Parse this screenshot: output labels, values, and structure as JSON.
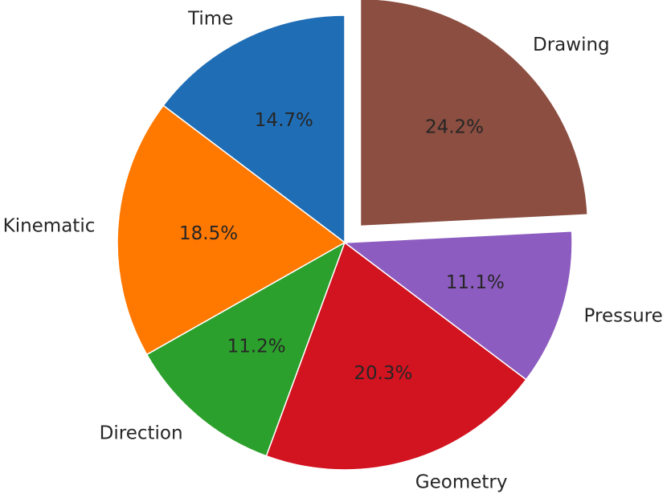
{
  "chart_data": {
    "type": "pie",
    "categories": [
      "Time",
      "Kinematic",
      "Direction",
      "Geometry",
      "Pressure",
      "Drawing"
    ],
    "values": [
      14.7,
      18.5,
      11.2,
      20.3,
      11.1,
      24.2
    ],
    "percent_labels": [
      "14.7%",
      "18.5%",
      "11.2%",
      "20.3%",
      "11.1%",
      "24.2%"
    ],
    "colors": [
      "#1f6eb5",
      "#ff7800",
      "#2ca02c",
      "#d21320",
      "#8c5cc0",
      "#8b4e40"
    ],
    "explode": [
      0,
      0,
      0,
      0,
      0,
      0.1
    ],
    "start_angle_deg": 90,
    "counterclockwise": true,
    "title": "",
    "legend": "none"
  }
}
